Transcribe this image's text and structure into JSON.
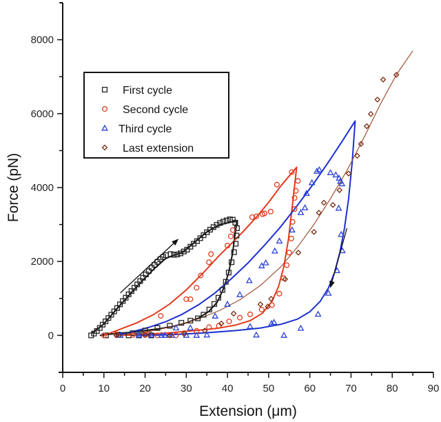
{
  "chart_data": {
    "type": "scatter",
    "title": "",
    "xlabel": "Extension (μm)",
    "ylabel": "Force (pN)",
    "xlim": [
      0,
      90
    ],
    "ylim": [
      -1000,
      9000
    ],
    "xticks": [
      0,
      10,
      20,
      30,
      40,
      50,
      60,
      70,
      80,
      90
    ],
    "yticks": [
      0,
      2000,
      4000,
      6000,
      8000
    ],
    "x_minor_step": 5,
    "y_minor_step": 1000,
    "grid": false,
    "legend_position": "top-left",
    "series": [
      {
        "name": "First cycle",
        "marker": "square",
        "color": "#222222",
        "points": [
          [
            6.9,
            0
          ],
          [
            7.6,
            50
          ],
          [
            8.3,
            120
          ],
          [
            9.0,
            200
          ],
          [
            9.7,
            290
          ],
          [
            10.4,
            380
          ],
          [
            11.1,
            470
          ],
          [
            11.8,
            560
          ],
          [
            12.5,
            650
          ],
          [
            13.2,
            740
          ],
          [
            13.9,
            840
          ],
          [
            14.6,
            930
          ],
          [
            15.3,
            1020
          ],
          [
            16.0,
            1110
          ],
          [
            16.7,
            1200
          ],
          [
            17.4,
            1290
          ],
          [
            18.1,
            1380
          ],
          [
            18.8,
            1470
          ],
          [
            19.5,
            1560
          ],
          [
            20.2,
            1650
          ],
          [
            20.9,
            1740
          ],
          [
            21.6,
            1830
          ],
          [
            22.3,
            1910
          ],
          [
            23.0,
            1990
          ],
          [
            23.7,
            2060
          ],
          [
            24.4,
            2120
          ],
          [
            25.1,
            2170
          ],
          [
            26.2,
            2200
          ],
          [
            27.0,
            2180
          ],
          [
            27.8,
            2190
          ],
          [
            28.6,
            2220
          ],
          [
            29.4,
            2270
          ],
          [
            30.2,
            2320
          ],
          [
            31.0,
            2400
          ],
          [
            31.8,
            2480
          ],
          [
            32.6,
            2550
          ],
          [
            33.4,
            2630
          ],
          [
            34.2,
            2710
          ],
          [
            35.0,
            2790
          ],
          [
            35.8,
            2860
          ],
          [
            36.6,
            2930
          ],
          [
            37.4,
            2990
          ],
          [
            38.2,
            3040
          ],
          [
            39.0,
            3080
          ],
          [
            39.8,
            3110
          ],
          [
            40.6,
            3140
          ],
          [
            41.3,
            3130
          ],
          [
            41.9,
            3050
          ],
          [
            42.3,
            2900
          ],
          [
            42.2,
            2700
          ],
          [
            42.0,
            2480
          ],
          [
            41.6,
            2250
          ],
          [
            41.0,
            1980
          ],
          [
            40.3,
            1700
          ],
          [
            39.6,
            1450
          ],
          [
            38.8,
            1230
          ],
          [
            37.8,
            1020
          ],
          [
            36.8,
            850
          ],
          [
            35.6,
            700
          ],
          [
            34.2,
            560
          ],
          [
            32.8,
            460
          ],
          [
            31.0,
            400
          ],
          [
            28.8,
            340
          ],
          [
            26.0,
            260
          ],
          [
            23.0,
            200
          ],
          [
            20.0,
            130
          ],
          [
            17.0,
            60
          ],
          [
            13.5,
            20
          ],
          [
            10.5,
            0
          ],
          [
            16.0,
            0
          ],
          [
            18.5,
            0
          ],
          [
            21.5,
            0
          ]
        ]
      },
      {
        "name": "Second cycle",
        "marker": "circle",
        "color": "#e23a1c",
        "points": [
          [
            10.0,
            0
          ],
          [
            13.0,
            30
          ],
          [
            17.0,
            10
          ],
          [
            21.0,
            40
          ],
          [
            23.8,
            530
          ],
          [
            27.5,
            0
          ],
          [
            30.0,
            980
          ],
          [
            31.0,
            980
          ],
          [
            32.5,
            1290
          ],
          [
            33.5,
            1620
          ],
          [
            35.5,
            1980
          ],
          [
            36.0,
            2200
          ],
          [
            40.0,
            2430
          ],
          [
            40.8,
            2680
          ],
          [
            41.3,
            2850
          ],
          [
            46.0,
            3200
          ],
          [
            47.0,
            3220
          ],
          [
            48.5,
            3280
          ],
          [
            49.0,
            3300
          ],
          [
            50.5,
            3350
          ],
          [
            52.0,
            4080
          ],
          [
            55.6,
            4420
          ],
          [
            57.1,
            4180
          ],
          [
            56.6,
            3910
          ],
          [
            56.3,
            3720
          ],
          [
            56.3,
            3420
          ],
          [
            55.8,
            3070
          ],
          [
            55.5,
            2620
          ],
          [
            55.0,
            2240
          ],
          [
            54.4,
            1900
          ],
          [
            53.6,
            1550
          ],
          [
            52.6,
            1130
          ],
          [
            50.8,
            820
          ],
          [
            48.3,
            700
          ],
          [
            45.5,
            570
          ],
          [
            43.0,
            480
          ],
          [
            40.4,
            380
          ],
          [
            37.9,
            260
          ],
          [
            35.5,
            220
          ],
          [
            32.5,
            120
          ],
          [
            29.5,
            60
          ],
          [
            26.0,
            10
          ],
          [
            23.0,
            0
          ],
          [
            20.0,
            10
          ]
        ]
      },
      {
        "name": "Third cycle",
        "marker": "triangle",
        "color": "#2840d8",
        "points": [
          [
            14.0,
            0
          ],
          [
            18.5,
            10
          ],
          [
            24.8,
            0
          ],
          [
            27.5,
            200
          ],
          [
            31.0,
            200
          ],
          [
            37.0,
            520
          ],
          [
            40.0,
            840
          ],
          [
            43.0,
            1100
          ],
          [
            45.3,
            1480
          ],
          [
            48.3,
            1880
          ],
          [
            49.3,
            1960
          ],
          [
            51.5,
            2280
          ],
          [
            52.6,
            2550
          ],
          [
            55.7,
            2850
          ],
          [
            57.8,
            3320
          ],
          [
            58.8,
            3450
          ],
          [
            59.2,
            3840
          ],
          [
            60.5,
            4130
          ],
          [
            61.7,
            4440
          ],
          [
            62.3,
            4480
          ],
          [
            65.0,
            4400
          ],
          [
            66.3,
            4340
          ],
          [
            67.1,
            4250
          ],
          [
            67.4,
            4170
          ],
          [
            67.8,
            4100
          ],
          [
            67.0,
            3440
          ],
          [
            67.6,
            2730
          ],
          [
            67.9,
            2290
          ],
          [
            66.6,
            1750
          ],
          [
            64.5,
            1140
          ],
          [
            62.0,
            570
          ],
          [
            57.8,
            190
          ],
          [
            53.7,
            0
          ],
          [
            51.3,
            350
          ],
          [
            50.7,
            320
          ],
          [
            47.0,
            10
          ],
          [
            45.5,
            240
          ],
          [
            35.0,
            10
          ],
          [
            32.5,
            0
          ],
          [
            30.0,
            0
          ],
          [
            26.5,
            0
          ],
          [
            24.0,
            0
          ],
          [
            21.5,
            10
          ]
        ]
      },
      {
        "name": "Last extension",
        "marker": "diamond",
        "color": "#7a2a10",
        "points": [
          [
            13.0,
            0
          ],
          [
            20.0,
            10
          ],
          [
            26.0,
            0
          ],
          [
            29.5,
            40
          ],
          [
            34.5,
            130
          ],
          [
            38.5,
            320
          ],
          [
            41.5,
            590
          ],
          [
            48.0,
            840
          ],
          [
            49.8,
            780
          ],
          [
            50.6,
            990
          ],
          [
            54.0,
            1520
          ],
          [
            57.2,
            2240
          ],
          [
            61.0,
            2800
          ],
          [
            62.2,
            3320
          ],
          [
            63.4,
            3590
          ],
          [
            65.6,
            3530
          ],
          [
            67.2,
            3930
          ],
          [
            69.4,
            4380
          ],
          [
            71.5,
            4860
          ],
          [
            72.4,
            5180
          ],
          [
            73.8,
            5660
          ],
          [
            74.8,
            5990
          ],
          [
            76.4,
            6380
          ],
          [
            77.8,
            6920
          ],
          [
            81.0,
            7050
          ]
        ]
      }
    ],
    "fitted_curves": [
      {
        "series": "First cycle",
        "color": "#111111",
        "points": [
          [
            7,
            50
          ],
          [
            10,
            310
          ],
          [
            13,
            700
          ],
          [
            16,
            1070
          ],
          [
            19,
            1440
          ],
          [
            22,
            1780
          ],
          [
            25,
            2080
          ],
          [
            27,
            2170
          ],
          [
            29,
            2240
          ],
          [
            32,
            2520
          ],
          [
            35,
            2800
          ],
          [
            38,
            2990
          ],
          [
            42.3,
            3100
          ],
          [
            41.8,
            2700
          ],
          [
            41.2,
            2200
          ],
          [
            40.3,
            1700
          ],
          [
            39,
            1250
          ],
          [
            37.5,
            900
          ],
          [
            35.5,
            650
          ],
          [
            33,
            470
          ],
          [
            30,
            340
          ],
          [
            27,
            250
          ],
          [
            24,
            190
          ],
          [
            20,
            130
          ],
          [
            16,
            80
          ],
          [
            12,
            40
          ],
          [
            9,
            0
          ]
        ]
      },
      {
        "series": "Second cycle",
        "color": "#e23a1c",
        "points": [
          [
            10,
            0
          ],
          [
            14,
            170
          ],
          [
            18,
            340
          ],
          [
            22,
            560
          ],
          [
            26,
            850
          ],
          [
            30,
            1230
          ],
          [
            34,
            1680
          ],
          [
            38,
            2160
          ],
          [
            41,
            2490
          ],
          [
            44,
            2830
          ],
          [
            47,
            3200
          ],
          [
            50,
            3600
          ],
          [
            53,
            4050
          ],
          [
            56.8,
            4550
          ],
          [
            55.8,
            3560
          ],
          [
            54.8,
            2600
          ],
          [
            53.7,
            1870
          ],
          [
            52.4,
            1320
          ],
          [
            50.8,
            920
          ],
          [
            48.5,
            600
          ],
          [
            45.5,
            400
          ],
          [
            42,
            280
          ],
          [
            38,
            200
          ],
          [
            34,
            150
          ],
          [
            30,
            110
          ],
          [
            26,
            70
          ],
          [
            22,
            40
          ],
          [
            17,
            10
          ],
          [
            13,
            0
          ]
        ]
      },
      {
        "series": "Third cycle",
        "color": "#1a2ed0",
        "points": [
          [
            13,
            0
          ],
          [
            17,
            100
          ],
          [
            21,
            220
          ],
          [
            25,
            370
          ],
          [
            29,
            570
          ],
          [
            33,
            830
          ],
          [
            37,
            1150
          ],
          [
            41,
            1540
          ],
          [
            45,
            1960
          ],
          [
            49,
            2440
          ],
          [
            53,
            2950
          ],
          [
            57,
            3520
          ],
          [
            61,
            4120
          ],
          [
            65,
            4770
          ],
          [
            68,
            5280
          ],
          [
            71,
            5800
          ],
          [
            70.3,
            4700
          ],
          [
            69.4,
            3700
          ],
          [
            68.4,
            2900
          ],
          [
            67.3,
            2250
          ],
          [
            66,
            1700
          ],
          [
            64.5,
            1280
          ],
          [
            62.5,
            920
          ],
          [
            60,
            640
          ],
          [
            57,
            440
          ],
          [
            53,
            300
          ],
          [
            48,
            200
          ],
          [
            42,
            130
          ],
          [
            36,
            80
          ],
          [
            30,
            40
          ],
          [
            24,
            10
          ],
          [
            18,
            0
          ]
        ]
      },
      {
        "series": "Last extension",
        "color": "#a05030",
        "points": [
          [
            13,
            0
          ],
          [
            18,
            60
          ],
          [
            23,
            150
          ],
          [
            28,
            280
          ],
          [
            33,
            450
          ],
          [
            38,
            670
          ],
          [
            43,
            960
          ],
          [
            48,
            1350
          ],
          [
            53,
            1860
          ],
          [
            57,
            2390
          ],
          [
            61,
            3000
          ],
          [
            65,
            3700
          ],
          [
            69,
            4460
          ],
          [
            73,
            5320
          ],
          [
            77,
            6230
          ],
          [
            81,
            7050
          ],
          [
            85,
            7700
          ]
        ]
      }
    ],
    "annotations": [
      {
        "type": "arrow",
        "label": "loading-direction",
        "from": [
          14,
          1150
        ],
        "to": [
          28,
          2600
        ],
        "color": "#111111"
      },
      {
        "type": "arrow",
        "label": "unloading-direction",
        "from": [
          69,
          2900
        ],
        "to": [
          65,
          1300
        ],
        "color": "#111111"
      }
    ]
  }
}
